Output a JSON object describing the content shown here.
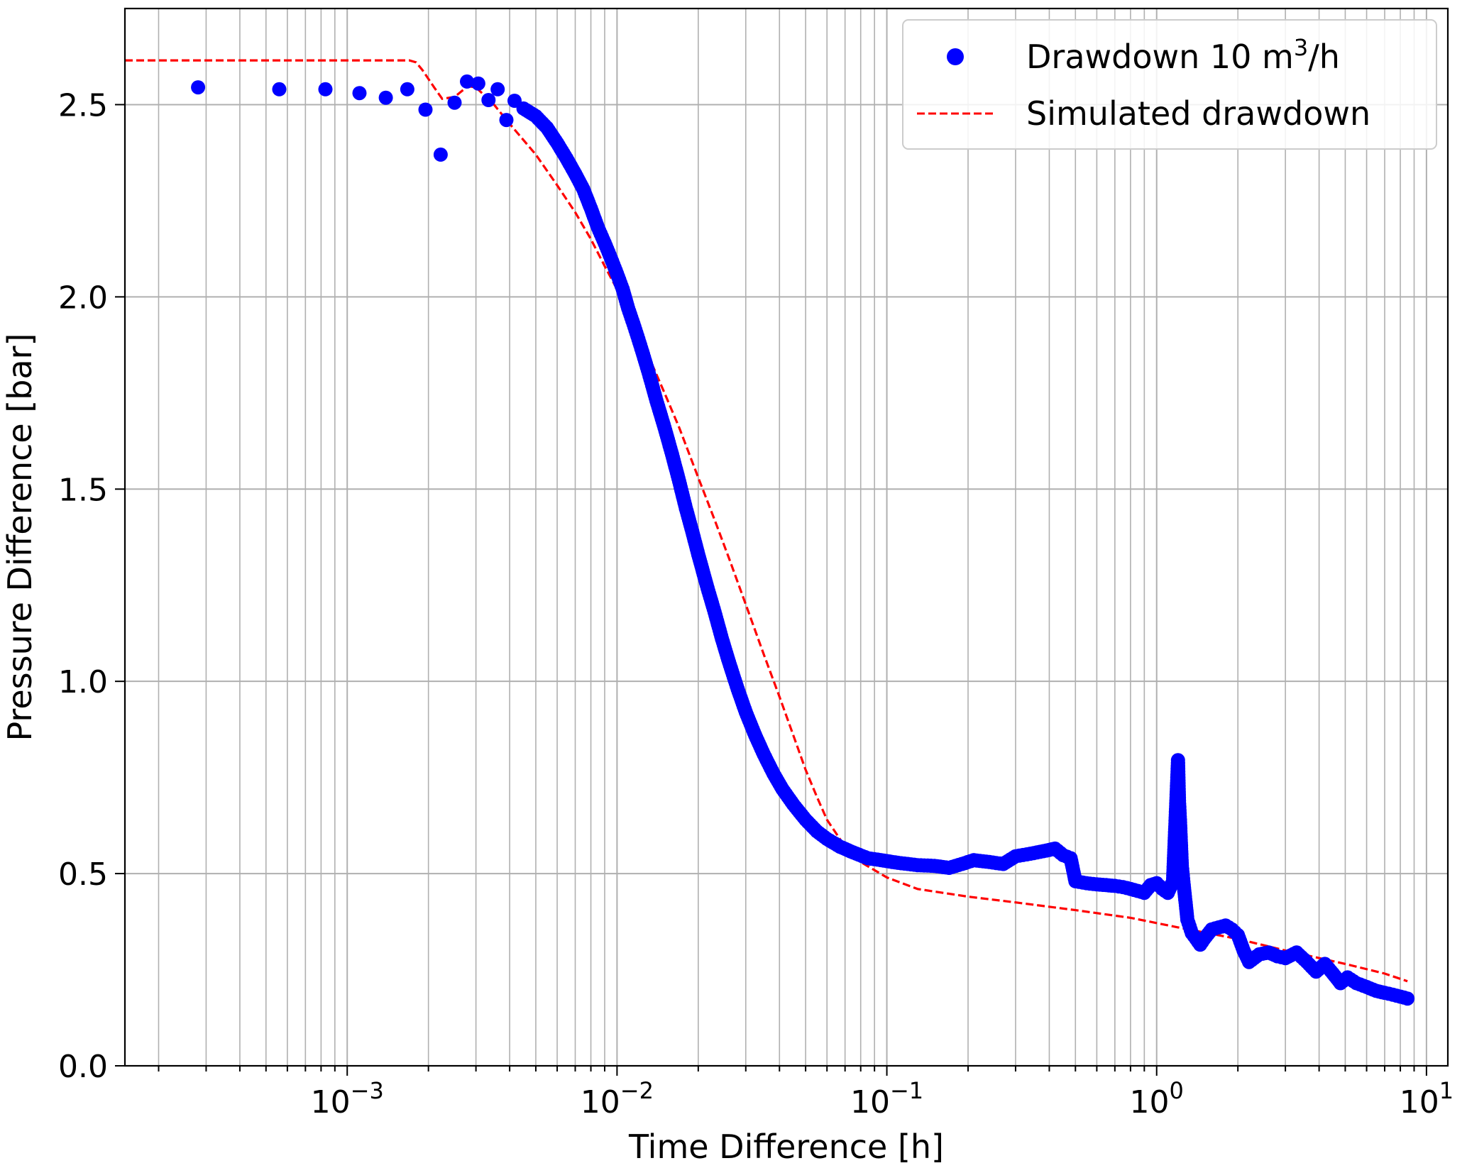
{
  "chart_data": {
    "type": "scatter",
    "title": "",
    "xlabel": "Time Difference [h]",
    "ylabel": "Pressure Difference [bar]",
    "xscale": "log",
    "xlim": [
      0.00015,
      12
    ],
    "ylim": [
      0,
      2.75
    ],
    "grid": true,
    "legend_position": "top-right",
    "x_ticks": [
      {
        "value": 0.001,
        "base": "10",
        "exp": "−3"
      },
      {
        "value": 0.01,
        "base": "10",
        "exp": "−2"
      },
      {
        "value": 0.1,
        "base": "10",
        "exp": "−1"
      },
      {
        "value": 1,
        "base": "10",
        "exp": "0"
      },
      {
        "value": 10,
        "base": "10",
        "exp": "1"
      }
    ],
    "y_ticks": [
      {
        "value": 0.0,
        "label": "0.0"
      },
      {
        "value": 0.5,
        "label": "0.5"
      },
      {
        "value": 1.0,
        "label": "1.0"
      },
      {
        "value": 1.5,
        "label": "1.5"
      },
      {
        "value": 2.0,
        "label": "2.0"
      },
      {
        "value": 2.5,
        "label": "2.5"
      }
    ],
    "legend": {
      "measured_label": "Drawdown 10 m",
      "measured_sup": "3",
      "measured_suffix": "/h",
      "simulated_label": "Simulated drawdown"
    },
    "series": [
      {
        "name": "Drawdown 10 m³/h",
        "style": "scatter",
        "color": "#0000ff",
        "points": [
          [
            0.00028,
            2.545
          ],
          [
            0.00056,
            2.54
          ],
          [
            0.00083,
            2.54
          ],
          [
            0.00111,
            2.53
          ],
          [
            0.00139,
            2.518
          ],
          [
            0.00167,
            2.54
          ],
          [
            0.00195,
            2.487
          ],
          [
            0.00222,
            2.37
          ],
          [
            0.0025,
            2.505
          ],
          [
            0.00278,
            2.56
          ],
          [
            0.00306,
            2.555
          ],
          [
            0.00334,
            2.512
          ],
          [
            0.00361,
            2.54
          ],
          [
            0.00389,
            2.46
          ],
          [
            0.00417,
            2.51
          ],
          [
            0.0045,
            2.49
          ],
          [
            0.005,
            2.47
          ],
          [
            0.0055,
            2.44
          ],
          [
            0.006,
            2.4
          ],
          [
            0.0065,
            2.36
          ],
          [
            0.007,
            2.32
          ],
          [
            0.0075,
            2.28
          ],
          [
            0.008,
            2.23
          ],
          [
            0.0085,
            2.18
          ],
          [
            0.009,
            2.14
          ],
          [
            0.0095,
            2.1
          ],
          [
            0.01,
            2.06
          ],
          [
            0.0105,
            2.02
          ],
          [
            0.011,
            1.97
          ],
          [
            0.0115,
            1.93
          ],
          [
            0.012,
            1.89
          ],
          [
            0.0125,
            1.85
          ],
          [
            0.013,
            1.81
          ],
          [
            0.0135,
            1.77
          ],
          [
            0.014,
            1.73
          ],
          [
            0.015,
            1.66
          ],
          [
            0.016,
            1.59
          ],
          [
            0.017,
            1.52
          ],
          [
            0.018,
            1.45
          ],
          [
            0.019,
            1.39
          ],
          [
            0.02,
            1.33
          ],
          [
            0.0215,
            1.25
          ],
          [
            0.023,
            1.18
          ],
          [
            0.0245,
            1.11
          ],
          [
            0.026,
            1.05
          ],
          [
            0.028,
            0.98
          ],
          [
            0.03,
            0.92
          ],
          [
            0.0325,
            0.86
          ],
          [
            0.035,
            0.81
          ],
          [
            0.038,
            0.76
          ],
          [
            0.041,
            0.72
          ],
          [
            0.045,
            0.68
          ],
          [
            0.05,
            0.64
          ],
          [
            0.055,
            0.61
          ],
          [
            0.06,
            0.59
          ],
          [
            0.067,
            0.57
          ],
          [
            0.075,
            0.555
          ],
          [
            0.085,
            0.54
          ],
          [
            0.095,
            0.535
          ],
          [
            0.11,
            0.528
          ],
          [
            0.13,
            0.522
          ],
          [
            0.15,
            0.52
          ],
          [
            0.17,
            0.515
          ],
          [
            0.19,
            0.525
          ],
          [
            0.21,
            0.535
          ],
          [
            0.24,
            0.53
          ],
          [
            0.27,
            0.525
          ],
          [
            0.3,
            0.545
          ],
          [
            0.33,
            0.55
          ],
          [
            0.36,
            0.555
          ],
          [
            0.39,
            0.56
          ],
          [
            0.42,
            0.565
          ],
          [
            0.45,
            0.548
          ],
          [
            0.48,
            0.54
          ],
          [
            0.5,
            0.48
          ],
          [
            0.55,
            0.475
          ],
          [
            0.6,
            0.472
          ],
          [
            0.65,
            0.47
          ],
          [
            0.7,
            0.468
          ],
          [
            0.75,
            0.465
          ],
          [
            0.8,
            0.46
          ],
          [
            0.85,
            0.455
          ],
          [
            0.9,
            0.45
          ],
          [
            0.95,
            0.47
          ],
          [
            1.0,
            0.475
          ],
          [
            1.05,
            0.46
          ],
          [
            1.1,
            0.45
          ],
          [
            1.15,
            0.48
          ],
          [
            1.2,
            0.795
          ],
          [
            1.21,
            0.69
          ],
          [
            1.22,
            0.64
          ],
          [
            1.23,
            0.58
          ],
          [
            1.24,
            0.52
          ],
          [
            1.26,
            0.47
          ],
          [
            1.3,
            0.38
          ],
          [
            1.35,
            0.345
          ],
          [
            1.4,
            0.33
          ],
          [
            1.45,
            0.315
          ],
          [
            1.5,
            0.33
          ],
          [
            1.6,
            0.355
          ],
          [
            1.7,
            0.36
          ],
          [
            1.8,
            0.365
          ],
          [
            1.9,
            0.355
          ],
          [
            2.0,
            0.34
          ],
          [
            2.1,
            0.3
          ],
          [
            2.2,
            0.27
          ],
          [
            2.4,
            0.29
          ],
          [
            2.6,
            0.295
          ],
          [
            2.8,
            0.285
          ],
          [
            3.0,
            0.28
          ],
          [
            3.3,
            0.295
          ],
          [
            3.6,
            0.27
          ],
          [
            3.9,
            0.245
          ],
          [
            4.2,
            0.265
          ],
          [
            4.5,
            0.24
          ],
          [
            4.8,
            0.215
          ],
          [
            5.1,
            0.23
          ],
          [
            5.5,
            0.215
          ],
          [
            6.0,
            0.205
          ],
          [
            6.5,
            0.195
          ],
          [
            7.0,
            0.19
          ],
          [
            7.5,
            0.185
          ],
          [
            8.0,
            0.18
          ],
          [
            8.5,
            0.175
          ]
        ]
      },
      {
        "name": "Simulated drawdown",
        "style": "dashed-line",
        "color": "#ff0000",
        "points": [
          [
            0.00015,
            2.615
          ],
          [
            0.0017,
            2.615
          ],
          [
            0.0018,
            2.61
          ],
          [
            0.0019,
            2.59
          ],
          [
            0.0021,
            2.545
          ],
          [
            0.00225,
            2.515
          ],
          [
            0.0025,
            2.52
          ],
          [
            0.0028,
            2.548
          ],
          [
            0.003,
            2.545
          ],
          [
            0.0035,
            2.5
          ],
          [
            0.004,
            2.45
          ],
          [
            0.005,
            2.37
          ],
          [
            0.006,
            2.29
          ],
          [
            0.007,
            2.22
          ],
          [
            0.008,
            2.15
          ],
          [
            0.009,
            2.08
          ],
          [
            0.01,
            2.02
          ],
          [
            0.0115,
            1.93
          ],
          [
            0.013,
            1.85
          ],
          [
            0.015,
            1.75
          ],
          [
            0.017,
            1.66
          ],
          [
            0.02,
            1.53
          ],
          [
            0.023,
            1.42
          ],
          [
            0.026,
            1.32
          ],
          [
            0.03,
            1.2
          ],
          [
            0.035,
            1.07
          ],
          [
            0.04,
            0.96
          ],
          [
            0.045,
            0.86
          ],
          [
            0.05,
            0.77
          ],
          [
            0.055,
            0.7
          ],
          [
            0.06,
            0.64
          ],
          [
            0.07,
            0.57
          ],
          [
            0.08,
            0.53
          ],
          [
            0.1,
            0.49
          ],
          [
            0.13,
            0.46
          ],
          [
            0.2,
            0.44
          ],
          [
            0.3,
            0.425
          ],
          [
            0.5,
            0.405
          ],
          [
            0.8,
            0.385
          ],
          [
            1.2,
            0.36
          ],
          [
            2.0,
            0.33
          ],
          [
            3.0,
            0.3
          ],
          [
            5.0,
            0.265
          ],
          [
            7.0,
            0.24
          ],
          [
            8.5,
            0.22
          ]
        ]
      }
    ]
  }
}
